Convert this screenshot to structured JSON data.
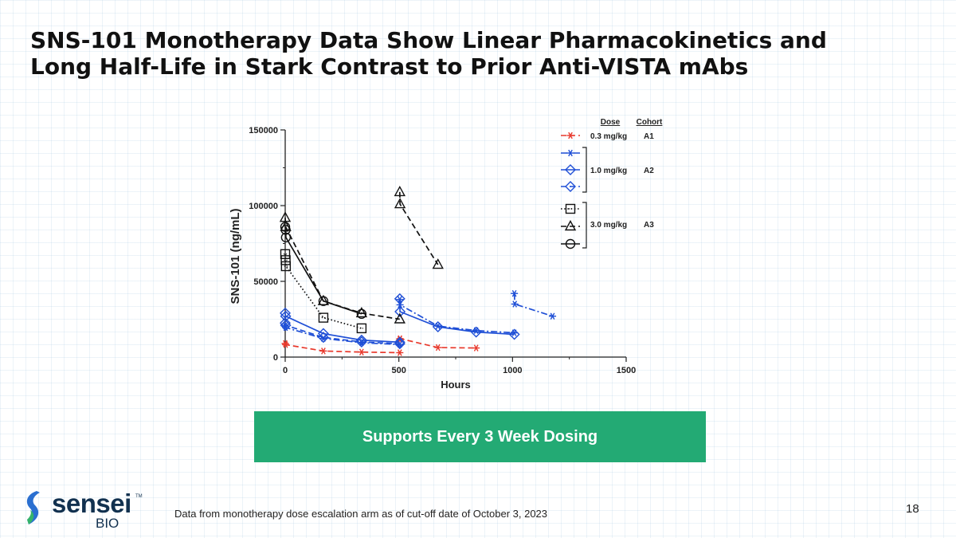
{
  "slide": {
    "title_line1": "SNS-101 Monotherapy Data Show Linear Pharmacokinetics and",
    "title_line2": "Long Half-Life in Stark Contrast to Prior Anti-VISTA mAbs",
    "banner": "Supports Every 3 Week Dosing",
    "footnote": "Data from monotherapy dose escalation arm as of cut-off date of October 3, 2023",
    "page_number": "18",
    "logo_word": "sensei",
    "logo_tm": "TM",
    "logo_sub": "BIO"
  },
  "colors": {
    "red": "#e8392c",
    "blue": "#1f4fd6",
    "black": "#111111",
    "banner": "#23aa74",
    "logo_navy": "#12314f",
    "logo_blue": "#2a6fd0",
    "logo_green": "#35b36b"
  },
  "chart_data": {
    "type": "line",
    "xlabel": "Hours",
    "ylabel": "SNS-101 (ng/mL)",
    "xlim": [
      0,
      1500
    ],
    "ylim": [
      0,
      150000
    ],
    "xticks": [
      "0",
      "500",
      "1000",
      "1500"
    ],
    "yticks": [
      "0",
      "50000",
      "100000",
      "150000"
    ],
    "legend": {
      "placement": "top-right",
      "header_dose": "Dose",
      "header_cohort": "Cohort",
      "groups": [
        {
          "dose": "0.3 mg/kg",
          "cohort": "A1"
        },
        {
          "dose": "1.0 mg/kg",
          "cohort": "A2"
        },
        {
          "dose": "3.0 mg/kg",
          "cohort": "A3"
        }
      ]
    },
    "series": [
      {
        "cohort": "A1",
        "marker": "star",
        "line": "dashed",
        "color": "red",
        "segments": [
          [
            [
              0,
              9000
            ],
            [
              2,
              8200
            ],
            [
              168,
              4000
            ],
            [
              336,
              3300
            ],
            [
              504,
              2900
            ]
          ],
          [
            [
              504,
              11500
            ],
            [
              505,
              12200
            ],
            [
              672,
              6300
            ],
            [
              840,
              6000
            ]
          ]
        ]
      },
      {
        "cohort": "A2",
        "marker": "star",
        "line": "dashdot",
        "color": "blue",
        "segments": [
          [
            [
              0,
              20500
            ],
            [
              2,
              19500
            ],
            [
              168,
              12300
            ],
            [
              336,
              9500
            ],
            [
              504,
              8300
            ]
          ],
          [
            [
              504,
              38000
            ],
            [
              505,
              34500
            ],
            [
              672,
              20500
            ],
            [
              840,
              17500
            ],
            [
              1008,
              16000
            ]
          ],
          [
            [
              1008,
              42000
            ],
            [
              1010,
              35000
            ],
            [
              1176,
              27000
            ]
          ]
        ]
      },
      {
        "cohort": "A2",
        "marker": "diamond",
        "line": "solid",
        "color": "blue",
        "segments": [
          [
            [
              0,
              29000
            ],
            [
              2,
              27000
            ],
            [
              168,
              15500
            ],
            [
              336,
              11200
            ],
            [
              504,
              9800
            ]
          ],
          [
            [
              504,
              38500
            ],
            [
              505,
              30000
            ],
            [
              672,
              20000
            ],
            [
              840,
              16500
            ],
            [
              1008,
              15000
            ]
          ]
        ]
      },
      {
        "cohort": "A2",
        "marker": "diamond-dot",
        "line": "dashed",
        "color": "blue",
        "segments": [
          [
            [
              0,
              22500
            ],
            [
              2,
              21000
            ],
            [
              168,
              13000
            ],
            [
              336,
              10000
            ],
            [
              504,
              8800
            ]
          ]
        ]
      },
      {
        "cohort": "A3",
        "marker": "square",
        "line": "dotted",
        "color": "black",
        "segments": [
          [
            [
              0,
              68000
            ],
            [
              2,
              64000
            ],
            [
              3,
              60000
            ],
            [
              168,
              26000
            ],
            [
              336,
              19000
            ]
          ]
        ]
      },
      {
        "cohort": "A3",
        "marker": "triangle",
        "line": "dashed",
        "color": "black",
        "segments": [
          [
            [
              0,
              92000
            ],
            [
              2,
              86000
            ],
            [
              168,
              37000
            ],
            [
              336,
              29000
            ],
            [
              504,
              25000
            ]
          ],
          [
            [
              504,
              109000
            ],
            [
              505,
              101000
            ],
            [
              672,
              61000
            ]
          ]
        ]
      },
      {
        "cohort": "A3",
        "marker": "circle",
        "line": "solid",
        "color": "black",
        "segments": [
          [
            [
              0,
              86000
            ],
            [
              2,
              84000
            ],
            [
              3,
              79000
            ],
            [
              168,
              37000
            ],
            [
              336,
              28500
            ]
          ]
        ]
      }
    ]
  }
}
